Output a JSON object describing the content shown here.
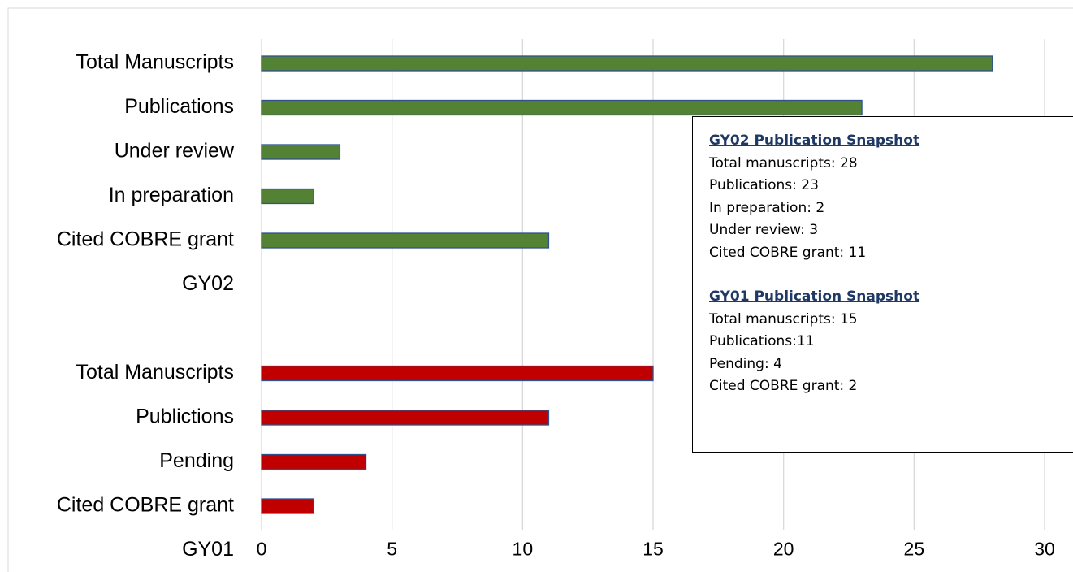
{
  "chart_data": {
    "type": "bar",
    "orientation": "horizontal",
    "categories": [
      "Total Manuscripts",
      "Publications",
      "Under review",
      "In preparation",
      "Cited COBRE grant",
      "GY02",
      null,
      "Total Manuscripts",
      "Publictions",
      "Pending",
      "Cited COBRE grant",
      "GY01"
    ],
    "values": [
      28,
      23,
      3,
      2,
      11,
      null,
      null,
      15,
      11,
      4,
      2,
      null
    ],
    "colors": [
      "#548235",
      "#548235",
      "#548235",
      "#548235",
      "#548235",
      null,
      null,
      "#c00000",
      "#c00000",
      "#c00000",
      "#c00000",
      null
    ],
    "xlim": [
      0,
      30
    ],
    "xticks": [
      0,
      5,
      10,
      15,
      20,
      25,
      30
    ],
    "grid": true,
    "annotation": [
      {
        "heading": "GY02 Publication Snapshot",
        "lines": [
          "Total manuscripts: 28",
          "Publications: 23",
          "In preparation: 2",
          "Under review: 3",
          "Cited COBRE grant: 11"
        ]
      },
      {
        "heading": "GY01 Publication Snapshot",
        "lines": [
          "Total manuscripts: 15",
          "Publications:11",
          "Pending: 4",
          "Cited COBRE grant: 2"
        ]
      }
    ]
  }
}
